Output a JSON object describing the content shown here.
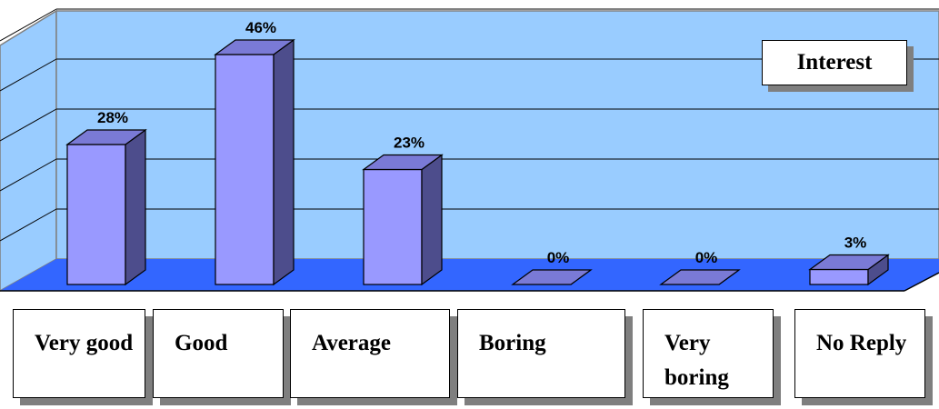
{
  "chart_data": {
    "type": "bar",
    "style": "3d",
    "categories": [
      "Very good",
      "Good",
      "Average",
      "Boring",
      "Very boring",
      "No Reply"
    ],
    "series": [
      {
        "name": "Interest",
        "values": [
          28,
          46,
          23,
          0,
          0,
          3
        ],
        "labels": [
          "28%",
          "46%",
          "23%",
          "0%",
          "0%",
          "3%"
        ]
      }
    ],
    "ylim": [
      0,
      50
    ],
    "grid": true,
    "legend_position": "top-right",
    "colors": {
      "wall": "#99ccff",
      "floor": "#3366ff",
      "bar_front": "#9999ff",
      "bar_side": "#4d4d8c",
      "bar_top": "#7a7ad6",
      "gridline": "#000000"
    }
  }
}
